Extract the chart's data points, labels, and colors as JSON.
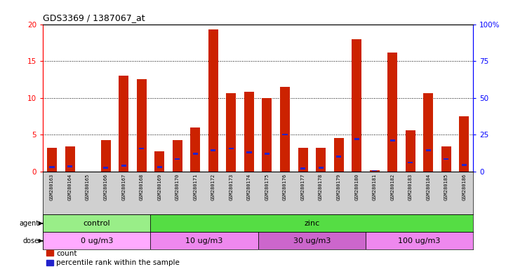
{
  "title": "GDS3369 / 1387067_at",
  "samples": [
    "GSM280163",
    "GSM280164",
    "GSM280165",
    "GSM280166",
    "GSM280167",
    "GSM280168",
    "GSM280169",
    "GSM280170",
    "GSM280171",
    "GSM280172",
    "GSM280173",
    "GSM280174",
    "GSM280175",
    "GSM280176",
    "GSM280177",
    "GSM280178",
    "GSM280179",
    "GSM280180",
    "GSM280181",
    "GSM280182",
    "GSM280183",
    "GSM280184",
    "GSM280185",
    "GSM280186"
  ],
  "count_values": [
    3.2,
    3.4,
    0.0,
    4.3,
    13.0,
    12.5,
    2.8,
    4.3,
    6.0,
    19.3,
    10.6,
    10.8,
    10.0,
    11.5,
    3.2,
    3.2,
    4.6,
    18.0,
    0.2,
    16.2,
    5.6,
    10.6,
    3.4,
    7.5
  ],
  "percentile_bottom": [
    0.5,
    0.6,
    0.0,
    0.4,
    0.7,
    3.0,
    0.5,
    1.6,
    2.3,
    2.8,
    3.0,
    2.5,
    2.3,
    4.9,
    0.3,
    0.4,
    1.9,
    4.3,
    0.1,
    4.1,
    1.1,
    2.8,
    1.6,
    0.8
  ],
  "percentile_height": [
    0.25,
    0.25,
    0.0,
    0.25,
    0.25,
    0.25,
    0.25,
    0.25,
    0.25,
    0.25,
    0.25,
    0.25,
    0.25,
    0.25,
    0.25,
    0.25,
    0.25,
    0.25,
    0.1,
    0.25,
    0.25,
    0.25,
    0.25,
    0.25
  ],
  "bar_color": "#CC2200",
  "percentile_color": "#2222CC",
  "ylim": [
    0,
    20
  ],
  "y2lim": [
    0,
    100
  ],
  "yticks": [
    0,
    5,
    10,
    15,
    20
  ],
  "y2ticks": [
    0,
    25,
    50,
    75,
    100
  ],
  "agent_groups": [
    {
      "label": "control",
      "start": 0,
      "end": 6,
      "color": "#99EE88"
    },
    {
      "label": "zinc",
      "start": 6,
      "end": 24,
      "color": "#55DD44"
    }
  ],
  "dose_groups": [
    {
      "label": "0 ug/m3",
      "start": 0,
      "end": 6,
      "color": "#FFAAFF"
    },
    {
      "label": "10 ug/m3",
      "start": 6,
      "end": 12,
      "color": "#EE88EE"
    },
    {
      "label": "30 ug/m3",
      "start": 12,
      "end": 18,
      "color": "#CC66CC"
    },
    {
      "label": "100 ug/m3",
      "start": 18,
      "end": 24,
      "color": "#EE88EE"
    }
  ],
  "legend_count_label": "count",
  "legend_percentile_label": "percentile rank within the sample",
  "plot_bg_color": "#FFFFFF",
  "tick_bg_color": "#D0D0D0",
  "agent_label": "agent",
  "dose_label": "dose"
}
